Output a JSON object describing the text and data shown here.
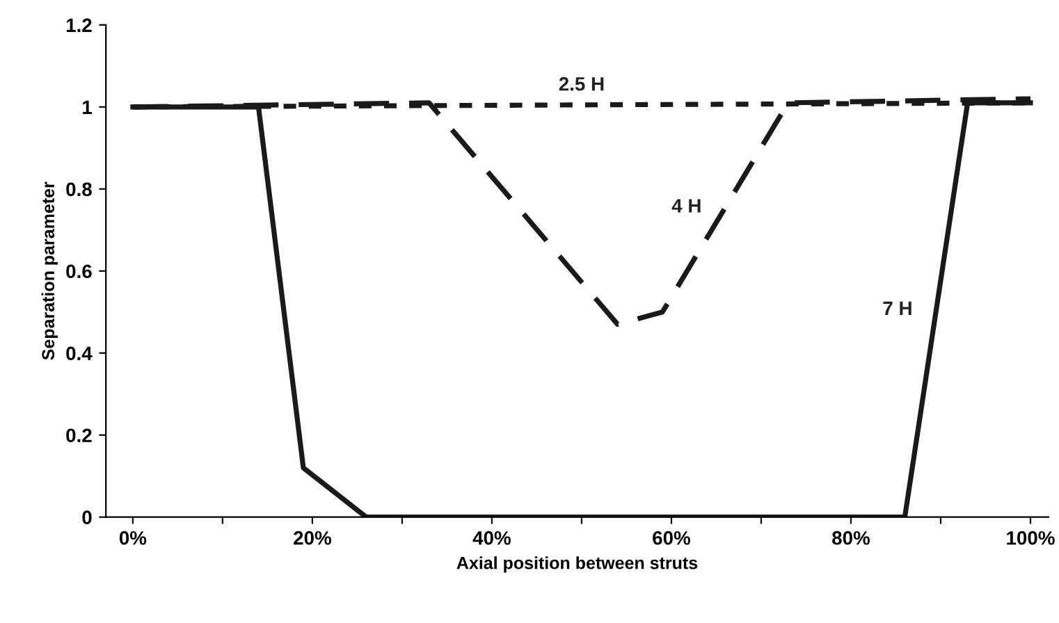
{
  "chart_data": {
    "type": "line",
    "xlabel": "Axial position between struts",
    "ylabel": "Separation parameter",
    "series": [
      {
        "name": "2.5 H",
        "color": "#1a1a1a",
        "line_style": "dotted",
        "x": [
          0,
          100
        ],
        "values": [
          1.0,
          1.01
        ]
      },
      {
        "name": "4 H",
        "color": "#1a1a1a",
        "line_style": "dashed",
        "x": [
          0,
          33,
          54,
          59,
          73,
          100
        ],
        "values": [
          1.0,
          1.01,
          0.47,
          0.5,
          1.01,
          1.02
        ]
      },
      {
        "name": "7 H",
        "color": "#1a1a1a",
        "line_style": "solid",
        "x": [
          0,
          14,
          19,
          26,
          86,
          93,
          100
        ],
        "values": [
          1.0,
          1.0,
          0.12,
          0,
          0,
          1.01,
          1.01
        ]
      }
    ],
    "xlim": [
      -3,
      102
    ],
    "xticks": [
      {
        "value": 0,
        "label": "0%"
      },
      {
        "value": 10,
        "label": null
      },
      {
        "value": 20,
        "label": "20%"
      },
      {
        "value": 30,
        "label": null
      },
      {
        "value": 40,
        "label": "40%"
      },
      {
        "value": 50,
        "label": null
      },
      {
        "value": 60,
        "label": "60%"
      },
      {
        "value": 70,
        "label": null
      },
      {
        "value": 80,
        "label": "80%"
      },
      {
        "value": 90,
        "label": null
      },
      {
        "value": 100,
        "label": "100%"
      }
    ],
    "ylim": [
      0,
      1.2
    ],
    "yticks": [
      0,
      {
        "value": 0.2,
        "label": "0.2"
      },
      {
        "value": 0.4,
        "label": "0.4"
      },
      {
        "value": 0.6,
        "label": "0.6"
      },
      {
        "value": 0.8,
        "label": "0.8"
      },
      1,
      {
        "value": 1.2,
        "label": "1.2"
      }
    ],
    "grid": false,
    "legend": false,
    "marker": "none"
  }
}
